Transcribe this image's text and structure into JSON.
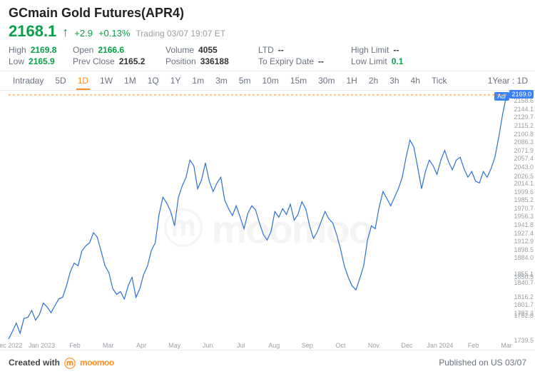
{
  "title": "GCmain Gold Futures(APR4)",
  "price": "2168.1",
  "change_abs": "+2.9",
  "change_pct": "+0.13%",
  "status": "Trading 03/07 19:07 ET",
  "stats": {
    "high": {
      "k": "High",
      "v": "2169.8",
      "green": true
    },
    "low": {
      "k": "Low",
      "v": "2165.9",
      "green": true
    },
    "open": {
      "k": "Open",
      "v": "2166.6",
      "green": true
    },
    "prev": {
      "k": "Prev Close",
      "v": "2165.2"
    },
    "vol": {
      "k": "Volume",
      "v": "4055"
    },
    "pos": {
      "k": "Position",
      "v": "336188"
    },
    "ltd": {
      "k": "LTD",
      "v": "--"
    },
    "exp": {
      "k": "To Expiry Date",
      "v": "--"
    },
    "hlim": {
      "k": "High Limit",
      "v": "--"
    },
    "llim": {
      "k": "Low Limit",
      "v": "0.1",
      "green": true
    }
  },
  "tabs": [
    "Intraday",
    "5D",
    "1D",
    "1W",
    "1M",
    "1Q",
    "1Y",
    "1m",
    "3m",
    "5m",
    "10m",
    "15m",
    "30m",
    "1H",
    "2h",
    "3h",
    "4h",
    "Tick"
  ],
  "active_tab": "1D",
  "period_label": "1Year : 1D",
  "chart": {
    "type": "line",
    "line_color": "#2d6fd6",
    "line_width": 1.2,
    "background": "#ffffff",
    "dash_color": "#ff8c1a",
    "grid_color": "#f1f1f1",
    "ylim": [
      1739.5,
      2169.0
    ],
    "yticks": [
      2169.0,
      2158.6,
      2144.1,
      2129.7,
      2115.2,
      2100.8,
      2086.3,
      2071.9,
      2057.4,
      2043.0,
      2026.5,
      2014.1,
      1999.6,
      1985.2,
      1970.7,
      1956.3,
      1941.8,
      1927.4,
      1912.9,
      1898.5,
      1884.0,
      1850.5,
      1855.1,
      1840.7,
      1816.2,
      1801.7,
      1787.3,
      1782.8,
      1739.5
    ],
    "xticks": [
      "Dec 2022",
      "Jan 2023",
      "Feb",
      "Mar",
      "Apr",
      "May",
      "Jun",
      "Jul",
      "Aug",
      "Sep",
      "Oct",
      "Nov",
      "Dec",
      "Jan 2024",
      "Feb",
      "Mar"
    ],
    "last_value": 2169.0,
    "series": [
      1742,
      1755,
      1770,
      1752,
      1778,
      1780,
      1792,
      1775,
      1785,
      1805,
      1798,
      1788,
      1800,
      1812,
      1815,
      1835,
      1860,
      1875,
      1870,
      1896,
      1905,
      1910,
      1928,
      1920,
      1895,
      1870,
      1858,
      1830,
      1820,
      1825,
      1812,
      1835,
      1850,
      1815,
      1830,
      1855,
      1870,
      1897,
      1910,
      1960,
      1990,
      1980,
      1965,
      1940,
      1990,
      2010,
      2025,
      2055,
      2045,
      2005,
      2020,
      2050,
      2018,
      2000,
      2015,
      2025,
      1985,
      1970,
      1958,
      1975,
      1955,
      1935,
      1962,
      1975,
      1968,
      1945,
      1925,
      1915,
      1930,
      1965,
      1955,
      1970,
      1960,
      1978,
      1950,
      1960,
      1982,
      1970,
      1940,
      1918,
      1930,
      1948,
      1965,
      1952,
      1945,
      1925,
      1900,
      1870,
      1850,
      1835,
      1828,
      1848,
      1870,
      1915,
      1940,
      1935,
      1972,
      2000,
      1988,
      1975,
      1990,
      2005,
      2025,
      2060,
      2090,
      2078,
      2042,
      2005,
      2035,
      2055,
      2045,
      2030,
      2055,
      2072,
      2052,
      2038,
      2055,
      2060,
      2040,
      2025,
      2035,
      2018,
      2015,
      2035,
      2025,
      2040,
      2060,
      2095,
      2135,
      2168
    ]
  },
  "footer": {
    "created_with": "Created with",
    "brand": "moomoo",
    "published": "Published on US 03/07"
  }
}
